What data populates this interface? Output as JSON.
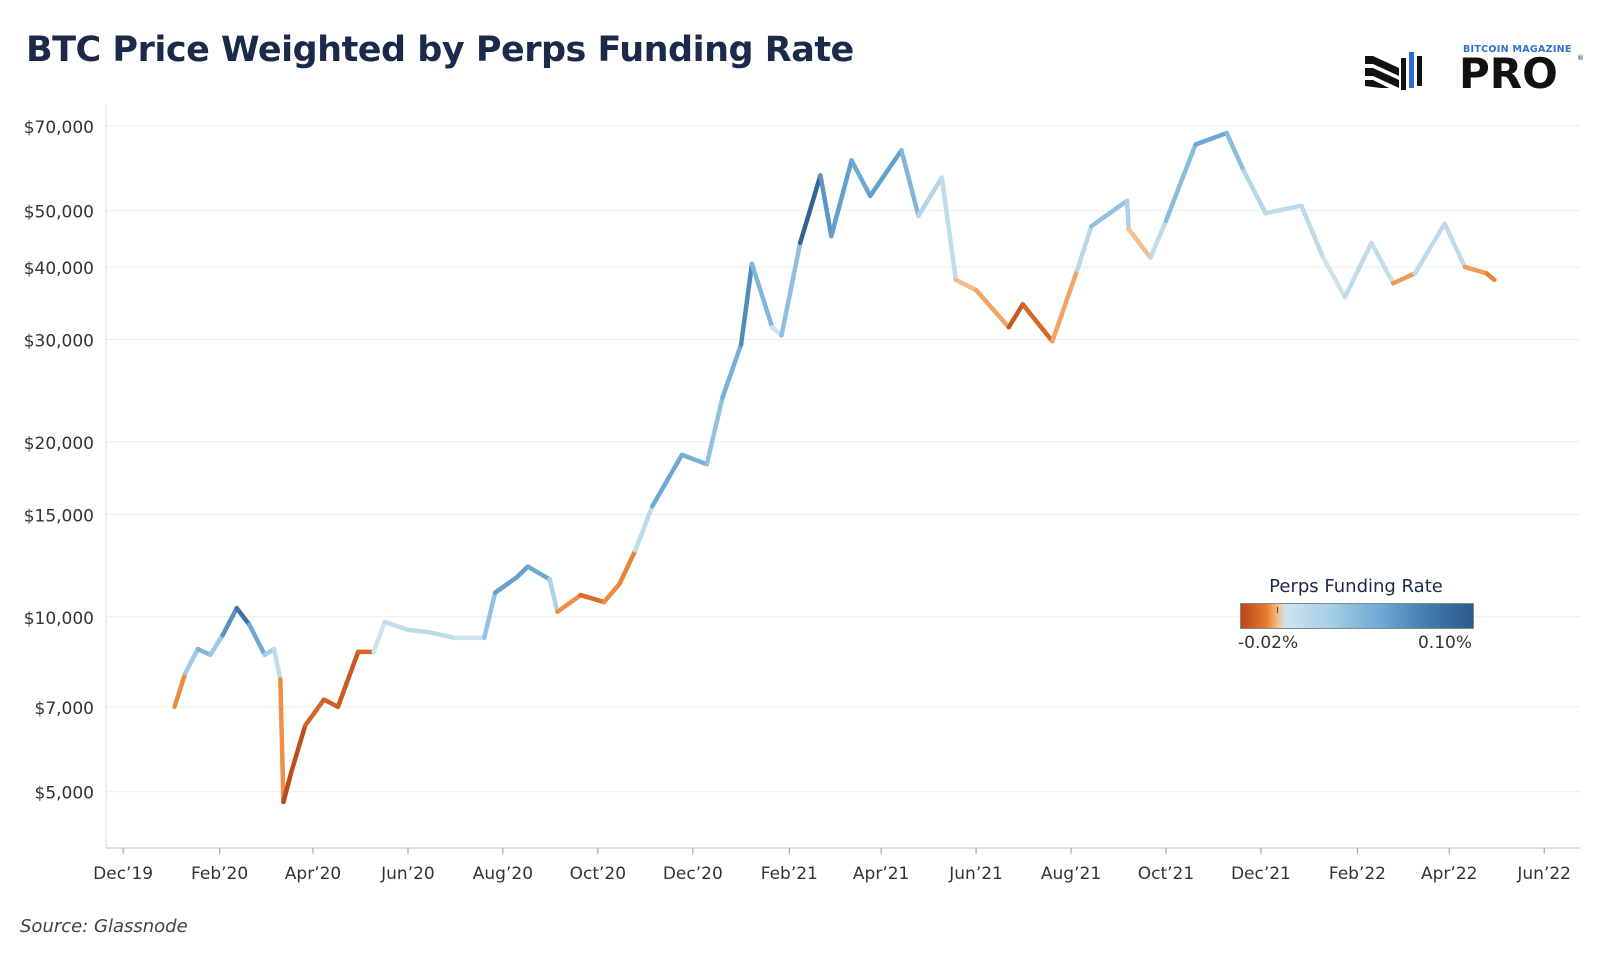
{
  "title": "BTC Price Weighted by Perps Funding Rate",
  "logo": {
    "small_text": "BITCOIN MAGAZINE",
    "big_text": "PRO",
    "reg_mark": "®"
  },
  "source": "Source: Glassnode",
  "legend": {
    "title": "Perps Funding Rate",
    "min_label": "-0.02%",
    "max_label": "0.10%"
  },
  "colors": {
    "title": "#1b2a4a",
    "grid": "#ececec",
    "very_negative": "#b8461a",
    "negative": "#e8792c",
    "neutral": "#cfe3ee",
    "positive": "#6ea9d4",
    "very_positive": "#2b5a88"
  },
  "chart_data": {
    "type": "line",
    "y_scale": "log",
    "ylim": [
      4000,
      76000
    ],
    "y_ticks": [
      {
        "value": 70000,
        "label": "$70,000"
      },
      {
        "value": 50000,
        "label": "$50,000"
      },
      {
        "value": 40000,
        "label": "$40,000"
      },
      {
        "value": 30000,
        "label": "$30,000"
      },
      {
        "value": 20000,
        "label": "$20,000"
      },
      {
        "value": 15000,
        "label": "$15,000"
      },
      {
        "value": 10000,
        "label": "$10,000"
      },
      {
        "value": 7000,
        "label": "$7,000"
      },
      {
        "value": 5000,
        "label": "$5,000"
      }
    ],
    "x_range": [
      "2019-11-20",
      "2022-06-24"
    ],
    "x_ticks": [
      {
        "value": "2019-12-01",
        "label": "Dec’19"
      },
      {
        "value": "2020-02-01",
        "label": "Feb’20"
      },
      {
        "value": "2020-04-01",
        "label": "Apr’20"
      },
      {
        "value": "2020-06-01",
        "label": "Jun’20"
      },
      {
        "value": "2020-08-01",
        "label": "Aug’20"
      },
      {
        "value": "2020-10-01",
        "label": "Oct’20"
      },
      {
        "value": "2020-12-01",
        "label": "Dec’20"
      },
      {
        "value": "2021-02-01",
        "label": "Feb’21"
      },
      {
        "value": "2021-04-01",
        "label": "Apr’21"
      },
      {
        "value": "2021-06-01",
        "label": "Jun’21"
      },
      {
        "value": "2021-08-01",
        "label": "Aug’21"
      },
      {
        "value": "2021-10-01",
        "label": "Oct’21"
      },
      {
        "value": "2021-12-01",
        "label": "Dec’21"
      },
      {
        "value": "2022-02-01",
        "label": "Feb’22"
      },
      {
        "value": "2022-04-01",
        "label": "Apr’22"
      },
      {
        "value": "2022-06-01",
        "label": "Jun’22"
      }
    ],
    "color_scale": {
      "min": -0.02,
      "max": 0.1,
      "unit": "%"
    },
    "series": [
      {
        "points": [
          {
            "x": "2020-01-03",
            "y": 7000,
            "rate": -0.004
          },
          {
            "x": "2020-01-10",
            "y": 8000,
            "rate": -0.012
          },
          {
            "x": "2020-01-18",
            "y": 8800,
            "rate": 0.08
          },
          {
            "x": "2020-01-26",
            "y": 8600,
            "rate": 0.02
          },
          {
            "x": "2020-02-03",
            "y": 9300,
            "rate": 0.05
          },
          {
            "x": "2020-02-12",
            "y": 10350,
            "rate": 0.095
          },
          {
            "x": "2020-02-20",
            "y": 9700,
            "rate": 0.08
          },
          {
            "x": "2020-03-01",
            "y": 8600,
            "rate": 0.04
          },
          {
            "x": "2020-03-07",
            "y": 8800,
            "rate": 0.02
          },
          {
            "x": "2020-03-11",
            "y": 7800,
            "rate": 0.005
          },
          {
            "x": "2020-03-13",
            "y": 4800,
            "rate": -0.02
          },
          {
            "x": "2020-03-18",
            "y": 5400,
            "rate": -0.019
          },
          {
            "x": "2020-03-27",
            "y": 6500,
            "rate": -0.018
          },
          {
            "x": "2020-04-08",
            "y": 7200,
            "rate": -0.01
          },
          {
            "x": "2020-04-17",
            "y": 7000,
            "rate": -0.02
          },
          {
            "x": "2020-04-30",
            "y": 8700,
            "rate": -0.012
          },
          {
            "x": "2020-05-10",
            "y": 8700,
            "rate": -0.015
          },
          {
            "x": "2020-05-17",
            "y": 9800,
            "rate": 0.02
          },
          {
            "x": "2020-06-01",
            "y": 9500,
            "rate": 0.0
          },
          {
            "x": "2020-06-15",
            "y": 9400,
            "rate": 0.03
          },
          {
            "x": "2020-07-01",
            "y": 9200,
            "rate": -0.004
          },
          {
            "x": "2020-07-20",
            "y": 9200,
            "rate": 0.01
          },
          {
            "x": "2020-07-27",
            "y": 11000,
            "rate": 0.07
          },
          {
            "x": "2020-08-10",
            "y": 11700,
            "rate": 0.06
          },
          {
            "x": "2020-08-17",
            "y": 12200,
            "rate": 0.07
          },
          {
            "x": "2020-08-31",
            "y": 11600,
            "rate": 0.05
          },
          {
            "x": "2020-09-05",
            "y": 10200,
            "rate": 0.0
          },
          {
            "x": "2020-09-20",
            "y": 10900,
            "rate": -0.015
          },
          {
            "x": "2020-10-05",
            "y": 10600,
            "rate": -0.01
          },
          {
            "x": "2020-10-15",
            "y": 11400,
            "rate": -0.006
          },
          {
            "x": "2020-10-25",
            "y": 13000,
            "rate": -0.012
          },
          {
            "x": "2020-11-05",
            "y": 15500,
            "rate": 0.04
          },
          {
            "x": "2020-11-24",
            "y": 19000,
            "rate": 0.08
          },
          {
            "x": "2020-12-10",
            "y": 18300,
            "rate": 0.03
          },
          {
            "x": "2020-12-20",
            "y": 23800,
            "rate": 0.05
          },
          {
            "x": "2021-01-01",
            "y": 29400,
            "rate": 0.06
          },
          {
            "x": "2021-01-08",
            "y": 40500,
            "rate": 0.09
          },
          {
            "x": "2021-01-21",
            "y": 31500,
            "rate": 0.01
          },
          {
            "x": "2021-01-27",
            "y": 30500,
            "rate": -0.004
          },
          {
            "x": "2021-02-08",
            "y": 44000,
            "rate": 0.09
          },
          {
            "x": "2021-02-21",
            "y": 57500,
            "rate": 0.1
          },
          {
            "x": "2021-02-28",
            "y": 45200,
            "rate": 0.04
          },
          {
            "x": "2021-03-13",
            "y": 61000,
            "rate": 0.09
          },
          {
            "x": "2021-03-25",
            "y": 53000,
            "rate": 0.03
          },
          {
            "x": "2021-04-14",
            "y": 63500,
            "rate": 0.1
          },
          {
            "x": "2021-04-25",
            "y": 49000,
            "rate": 0.0
          },
          {
            "x": "2021-05-10",
            "y": 57000,
            "rate": 0.04
          },
          {
            "x": "2021-05-19",
            "y": 38000,
            "rate": -0.015
          },
          {
            "x": "2021-06-01",
            "y": 36500,
            "rate": 0.01
          },
          {
            "x": "2021-06-22",
            "y": 31500,
            "rate": -0.02
          },
          {
            "x": "2021-07-01",
            "y": 34500,
            "rate": -0.012
          },
          {
            "x": "2021-07-20",
            "y": 29800,
            "rate": -0.015
          },
          {
            "x": "2021-08-05",
            "y": 39500,
            "rate": 0.005
          },
          {
            "x": "2021-08-14",
            "y": 47000,
            "rate": 0.03
          },
          {
            "x": "2021-09-06",
            "y": 52000,
            "rate": 0.05
          },
          {
            "x": "2021-09-07",
            "y": 46500,
            "rate": 0.0
          },
          {
            "x": "2021-09-21",
            "y": 41500,
            "rate": -0.004
          },
          {
            "x": "2021-10-01",
            "y": 48000,
            "rate": 0.03
          },
          {
            "x": "2021-10-20",
            "y": 65000,
            "rate": 0.06
          },
          {
            "x": "2021-11-09",
            "y": 68000,
            "rate": 0.06
          },
          {
            "x": "2021-11-20",
            "y": 58500,
            "rate": 0.03
          },
          {
            "x": "2021-12-04",
            "y": 49500,
            "rate": 0.01
          },
          {
            "x": "2021-12-27",
            "y": 51000,
            "rate": 0.02
          },
          {
            "x": "2022-01-10",
            "y": 41500,
            "rate": 0.01
          },
          {
            "x": "2022-01-24",
            "y": 35500,
            "rate": -0.004
          },
          {
            "x": "2022-02-10",
            "y": 44000,
            "rate": 0.03
          },
          {
            "x": "2022-02-24",
            "y": 37500,
            "rate": -0.008
          },
          {
            "x": "2022-03-10",
            "y": 39000,
            "rate": -0.004
          },
          {
            "x": "2022-03-29",
            "y": 47500,
            "rate": 0.03
          },
          {
            "x": "2022-04-11",
            "y": 40000,
            "rate": -0.004
          },
          {
            "x": "2022-04-25",
            "y": 39000,
            "rate": -0.008
          },
          {
            "x": "2022-04-30",
            "y": 38000,
            "rate": -0.01
          }
        ]
      }
    ]
  }
}
